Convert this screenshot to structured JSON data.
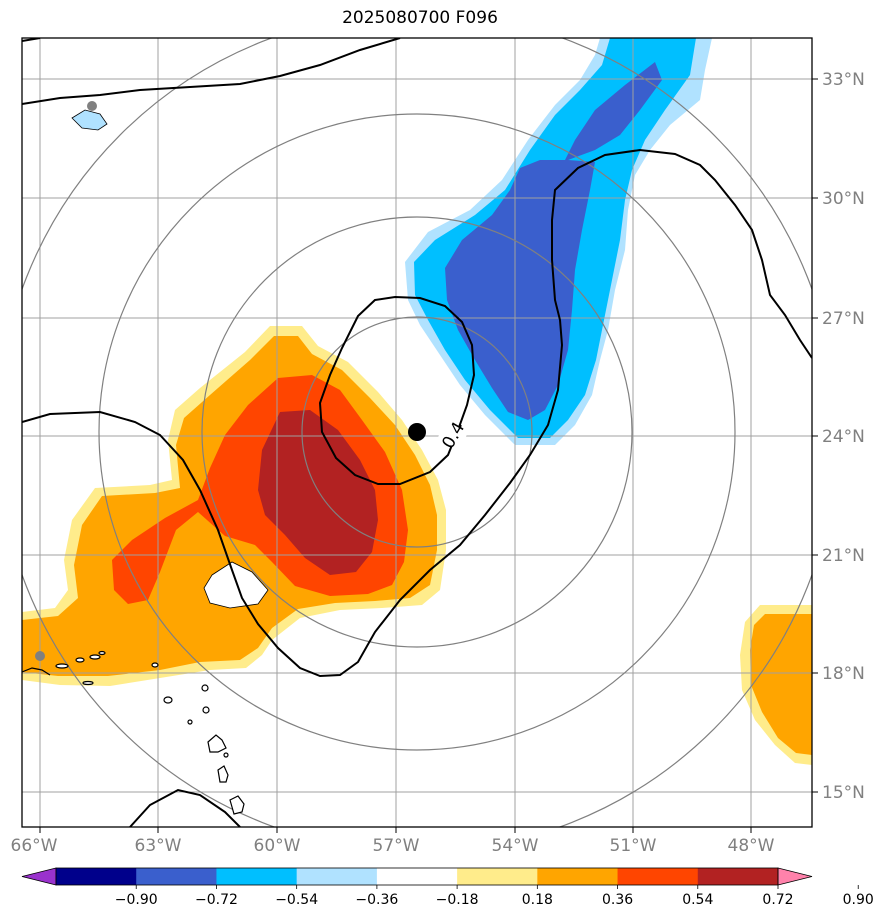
{
  "map": {
    "title": "2025080700 F096",
    "lon_labels": [
      "66°W",
      "63°W",
      "60°W",
      "57°W",
      "54°W",
      "51°W",
      "48°W"
    ],
    "lat_labels": [
      "33°N",
      "30°N",
      "27°N",
      "24°N",
      "21°N",
      "18°N",
      "15°N"
    ],
    "contour_label": "0.4",
    "colorbar": {
      "tick_labels": [
        "−0.90",
        "−0.72",
        "−0.54",
        "−0.36",
        "−0.18",
        "0.18",
        "0.36",
        "0.54",
        "0.72",
        "0.90"
      ],
      "colors": [
        "#9a32cd",
        "#00008b",
        "#3a5fcd",
        "#00bfff",
        "#b0e2ff",
        "#ffffff",
        "#ffec8b",
        "#ffa500",
        "#ff4500",
        "#b22222",
        "#ff82ab"
      ]
    },
    "colors": {
      "light_blue": "#b0e2ff",
      "deep_sky_blue": "#00bfff",
      "royal_blue": "#3a5fcd",
      "light_yellow": "#ffec8b",
      "orange": "#ffa500",
      "orange_red": "#ff4500",
      "firebrick": "#b22222",
      "grid": "#a0a0a0",
      "range_ring": "#808080",
      "contour": "#000000"
    }
  }
}
